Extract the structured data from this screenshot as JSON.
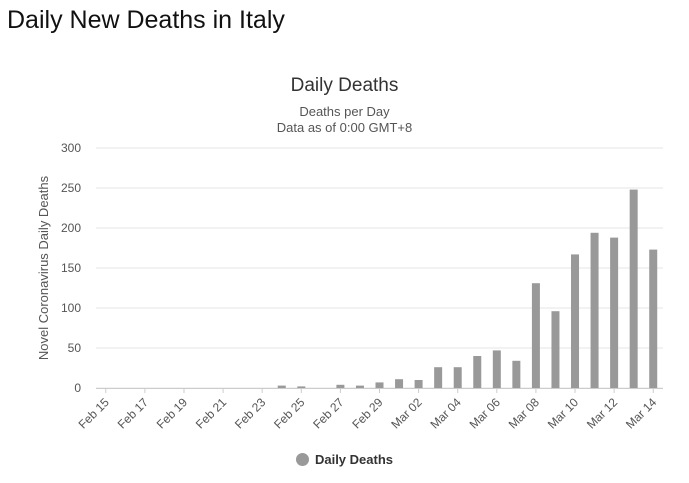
{
  "page": {
    "heading": "Daily New Deaths in Italy"
  },
  "chart_data": {
    "type": "bar",
    "title": "Daily Deaths",
    "subtitle_line1": "Deaths per Day",
    "subtitle_line2": "Data as of 0:00 GMT+8",
    "xlabel": "",
    "ylabel": "Novel Coronavirus Daily Deaths",
    "ylim": [
      0,
      300
    ],
    "yticks": [
      0,
      50,
      100,
      150,
      200,
      250,
      300
    ],
    "grid": true,
    "legend_position": "bottom",
    "bar_color": "#999999",
    "categories": [
      "Feb 15",
      "Feb 16",
      "Feb 17",
      "Feb 18",
      "Feb 19",
      "Feb 20",
      "Feb 21",
      "Feb 22",
      "Feb 23",
      "Feb 24",
      "Feb 25",
      "Feb 26",
      "Feb 27",
      "Feb 28",
      "Feb 29",
      "Mar 01",
      "Mar 02",
      "Mar 03",
      "Mar 04",
      "Mar 05",
      "Mar 06",
      "Mar 07",
      "Mar 08",
      "Mar 09",
      "Mar 10",
      "Mar 11",
      "Mar 12",
      "Mar 13",
      "Mar 14"
    ],
    "tick_labels": [
      "Feb 15",
      "Feb 17",
      "Feb 19",
      "Feb 21",
      "Feb 23",
      "Feb 25",
      "Feb 27",
      "Feb 29",
      "Mar 02",
      "Mar 04",
      "Mar 06",
      "Mar 08",
      "Mar 10",
      "Mar 12",
      "Mar 14"
    ],
    "series": [
      {
        "name": "Daily Deaths",
        "values": [
          0,
          0,
          0,
          0,
          0,
          0,
          0,
          0,
          0,
          3,
          2,
          0,
          4,
          3,
          7,
          11,
          10,
          26,
          26,
          40,
          47,
          34,
          131,
          96,
          167,
          194,
          188,
          248,
          173
        ]
      }
    ]
  }
}
